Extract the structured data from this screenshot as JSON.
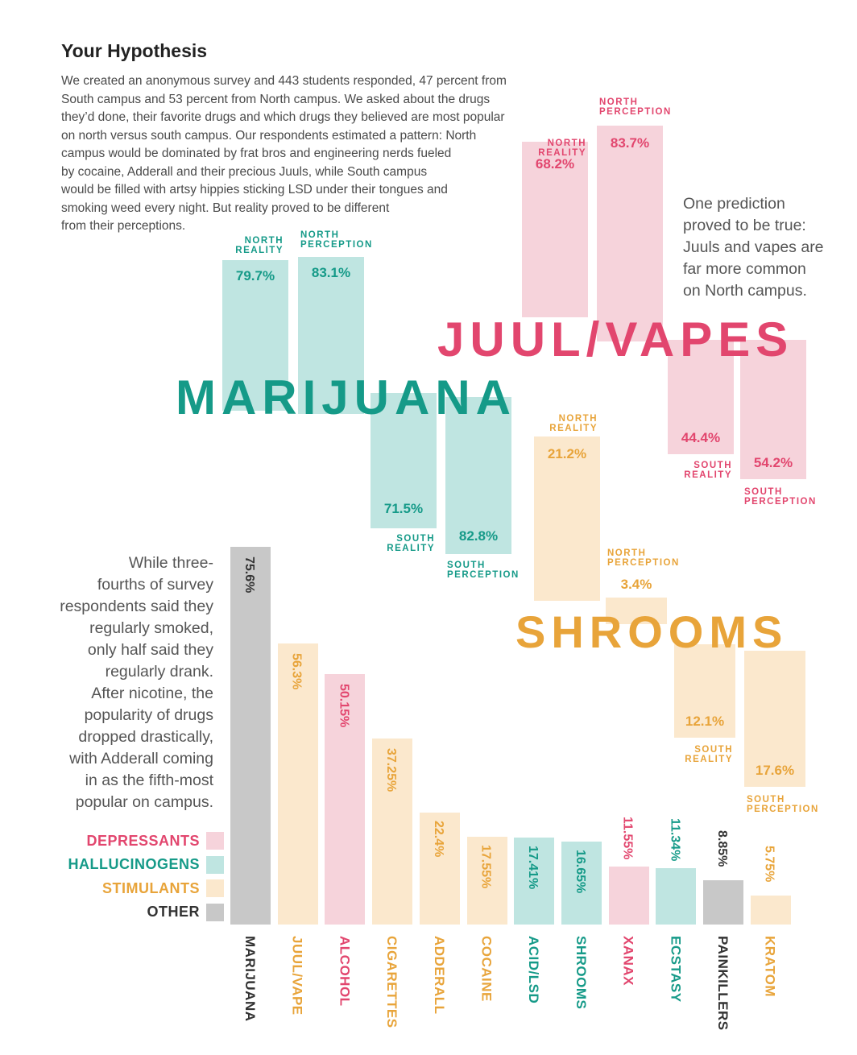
{
  "title": "Your Hypothesis",
  "intro": "We created an anonymous survey and 443 students responded, 47 percent from\nSouth campus and 53 percent from North campus. We asked about the drugs\nthey’d done, their favorite drugs and which drugs they believed are most popular\non north versus south campus. Our respondents estimated a pattern: North\ncampus would be dominated by frat bros and engineering nerds fueled\nby cocaine, Adderall and their precious Juuls, while South campus\nwould be filled with artsy hippies sticking LSD under their tongues and\nsmoking weed every night. But reality proved to be different\nfrom their perceptions.",
  "note_juul": "One prediction\nproved to be true:\nJuuls and vapes are\nfar more common\non North campus.",
  "note_popularity": "While three-\nfourths of survey\nrespondents said they\nregularly smoked,\nonly half said they\nregularly drank.\nAfter nicotine, the\npopularity of drugs\ndropped drastically,\nwith Adderall coming\nin as the fifth-most\npopular on campus.",
  "colors": {
    "depressants": "#e2466e",
    "depressants_fill": "#f6d3db",
    "hallucinogens": "#159a88",
    "hallucinogens_fill": "#bfe5e1",
    "stimulants": "#e8a43a",
    "stimulants_fill": "#fbe8cd",
    "other": "#333333",
    "other_fill": "#c8c8c8"
  },
  "legend": [
    {
      "label": "DEPRESSANTS",
      "cls": "depressants"
    },
    {
      "label": "HALLUCINOGENS",
      "cls": "hallucinogens"
    },
    {
      "label": "STIMULANTS",
      "cls": "stimulants"
    },
    {
      "label": "OTHER",
      "cls": "other"
    }
  ],
  "chart_data": [
    {
      "type": "bar",
      "title": "JUUL/VAPES",
      "unit": "%",
      "series": [
        {
          "name": "NORTH REALITY",
          "value": 68.2,
          "label": "68.2%"
        },
        {
          "name": "NORTH PERCEPTION",
          "value": 83.7,
          "label": "83.7%"
        },
        {
          "name": "SOUTH REALITY",
          "value": 44.4,
          "label": "44.4%"
        },
        {
          "name": "SOUTH PERCEPTION",
          "value": 54.2,
          "label": "54.2%"
        }
      ]
    },
    {
      "type": "bar",
      "title": "MARIJUANA",
      "unit": "%",
      "series": [
        {
          "name": "NORTH REALITY",
          "value": 79.7,
          "label": "79.7%"
        },
        {
          "name": "NORTH PERCEPTION",
          "value": 83.1,
          "label": "83.1%"
        },
        {
          "name": "SOUTH REALITY",
          "value": 71.5,
          "label": "71.5%"
        },
        {
          "name": "SOUTH PERCEPTION",
          "value": 82.8,
          "label": "82.8%"
        }
      ]
    },
    {
      "type": "bar",
      "title": "SHROOMS",
      "unit": "%",
      "series": [
        {
          "name": "NORTH REALITY",
          "value": 21.2,
          "label": "21.2%"
        },
        {
          "name": "NORTH PERCEPTION",
          "value": 3.4,
          "label": "3.4%"
        },
        {
          "name": "SOUTH REALITY",
          "value": 12.1,
          "label": "12.1%"
        },
        {
          "name": "SOUTH PERCEPTION",
          "value": 17.6,
          "label": "17.6%"
        }
      ]
    },
    {
      "type": "bar",
      "unit": "%",
      "categories": [
        "MARIJUANA",
        "JUUL/VAPE",
        "ALCOHOL",
        "CIGARETTES",
        "ADDERALL",
        "COCAINE",
        "ACID/LSD",
        "SHROOMS",
        "XANAX",
        "ECSTASY",
        "PAINKILLERS",
        "KRATOM"
      ],
      "values": [
        75.6,
        56.3,
        50.15,
        37.25,
        22.4,
        17.55,
        17.41,
        16.65,
        11.55,
        11.34,
        8.85,
        5.75
      ],
      "labels": [
        "75.6%",
        "56.3%",
        "50.15%",
        "37.25%",
        "22.4%",
        "17.55%",
        "17.41%",
        "16.65%",
        "11.55%",
        "11.34%",
        "8.85%",
        "5.75%"
      ],
      "groups": [
        "other",
        "stimulants",
        "depressants",
        "stimulants",
        "stimulants",
        "stimulants",
        "hallucinogens",
        "hallucinogens",
        "depressants",
        "hallucinogens",
        "other",
        "stimulants"
      ]
    }
  ]
}
